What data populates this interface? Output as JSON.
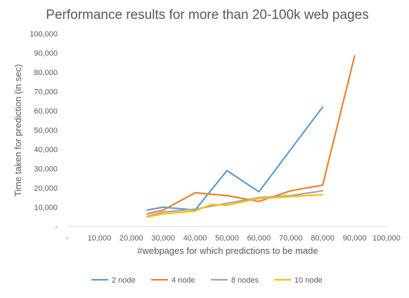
{
  "chart_data": {
    "type": "line",
    "title": "Performance results for more than 20-100k web pages",
    "xlabel": "#webpages for which predictions to be made",
    "ylabel": "Time taken for prediction (in sec)",
    "xlim": [
      0,
      100000
    ],
    "ylim": [
      0,
      100000
    ],
    "x_ticks": [
      0,
      10000,
      20000,
      30000,
      40000,
      50000,
      60000,
      70000,
      80000,
      90000,
      100000
    ],
    "x_tick_labels": [
      "-",
      "10,000",
      "20,000",
      "30,000",
      "40,000",
      "50,000",
      "60,000",
      "70,000",
      "80,000",
      "90,000",
      "100,000"
    ],
    "y_ticks": [
      0,
      10000,
      20000,
      30000,
      40000,
      50000,
      60000,
      70000,
      80000,
      90000,
      100000
    ],
    "y_tick_labels": [
      "-",
      "10,000",
      "20,000",
      "30,000",
      "40,000",
      "50,000",
      "60,000",
      "70,000",
      "80,000",
      "90,000",
      "100,000"
    ],
    "grid": false,
    "legend_position": "bottom",
    "series": [
      {
        "name": "2 node",
        "color": "#5B9BD5",
        "x": [
          25000,
          30000,
          40000,
          50000,
          60000,
          70000,
          80000
        ],
        "y": [
          8500,
          10000,
          8500,
          29000,
          18000,
          40000,
          62000
        ]
      },
      {
        "name": "4 node",
        "color": "#ED7D31",
        "x": [
          25000,
          30000,
          40000,
          50000,
          60000,
          70000,
          80000,
          90000
        ],
        "y": [
          6500,
          8500,
          17500,
          16000,
          13000,
          18500,
          21500,
          88500
        ]
      },
      {
        "name": "8 nodes",
        "color": "#A5A5A5",
        "x": [
          25000,
          30000,
          40000,
          50000,
          60000,
          70000,
          80000
        ],
        "y": [
          5200,
          7500,
          9000,
          12000,
          15000,
          16000,
          18500
        ]
      },
      {
        "name": "10 node",
        "color": "#FFC000",
        "x": [
          25000,
          30000,
          40000,
          45000,
          50000,
          60000,
          70000,
          80000
        ],
        "y": [
          5000,
          6500,
          8000,
          11500,
          11000,
          14500,
          15500,
          16500
        ]
      }
    ]
  }
}
